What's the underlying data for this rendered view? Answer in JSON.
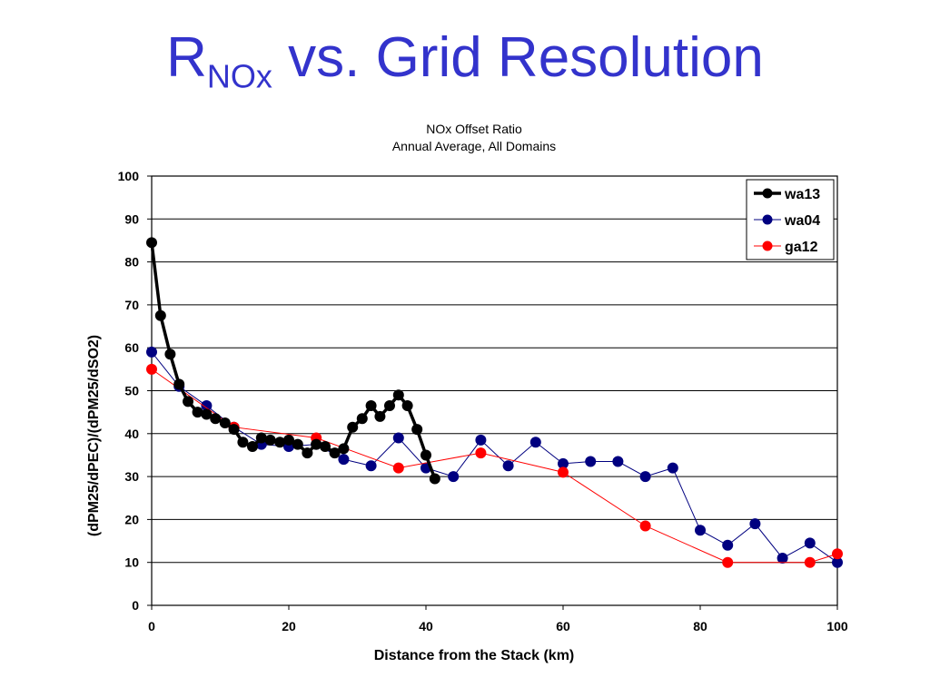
{
  "slide": {
    "title_main": "R",
    "title_sub": "NOx",
    "title_rest": " vs. Grid Resolution"
  },
  "chart_data": {
    "type": "line",
    "title": "NOx Offset Ratio",
    "subtitle": "Annual Average, All Domains",
    "xlabel": "Distance from the Stack (km)",
    "ylabel": "(dPM25/dPEC)/(dPM25/dSO2)",
    "xlim": [
      0,
      100
    ],
    "ylim": [
      0,
      100
    ],
    "xticks": [
      0,
      20,
      40,
      60,
      80,
      100
    ],
    "yticks": [
      0,
      10,
      20,
      30,
      40,
      50,
      60,
      70,
      80,
      90,
      100
    ],
    "grid": "horizontal",
    "legend_position": "top-right",
    "series": [
      {
        "name": "wa13",
        "color": "#000000",
        "line_width": "thick",
        "x": [
          0,
          1.3,
          2.7,
          4.0,
          5.3,
          6.7,
          8.0,
          9.3,
          10.7,
          12.0,
          13.3,
          14.7,
          16.0,
          17.3,
          18.7,
          20.0,
          21.3,
          22.7,
          24.0,
          25.3,
          26.7,
          28.0,
          29.3,
          30.7,
          32.0,
          33.3,
          34.7,
          36.0,
          37.3,
          38.7,
          40.0,
          41.3
        ],
        "y": [
          84.5,
          67.5,
          58.5,
          51.5,
          47.5,
          45,
          44.5,
          43.5,
          42.5,
          41,
          38,
          37,
          39,
          38.5,
          38,
          38.5,
          37.5,
          35.5,
          37.5,
          37,
          35.5,
          36.5,
          41.5,
          43.5,
          46.5,
          44,
          46.5,
          49,
          46.5,
          41,
          35,
          29.5
        ]
      },
      {
        "name": "wa04",
        "color": "#000080",
        "line_width": "thin",
        "x": [
          0,
          4,
          8,
          12,
          16,
          20,
          24,
          28,
          32,
          36,
          40,
          44,
          48,
          52,
          56,
          60,
          64,
          68,
          72,
          76,
          80,
          84,
          88,
          92,
          96,
          100
        ],
        "y": [
          59,
          51,
          46.5,
          41.5,
          37.5,
          37,
          37.5,
          34,
          32.5,
          39,
          32,
          30,
          38.5,
          32.5,
          38,
          33,
          33.5,
          33.5,
          30,
          32,
          17.5,
          14,
          19,
          11,
          14.5,
          10
        ]
      },
      {
        "name": "ga12",
        "color": "#ff0000",
        "line_width": "thin",
        "x": [
          0,
          12,
          24,
          36,
          48,
          60,
          72,
          84,
          96,
          100
        ],
        "y": [
          55,
          41.5,
          39,
          32,
          35.5,
          31,
          18.5,
          10,
          10,
          12
        ]
      }
    ]
  }
}
